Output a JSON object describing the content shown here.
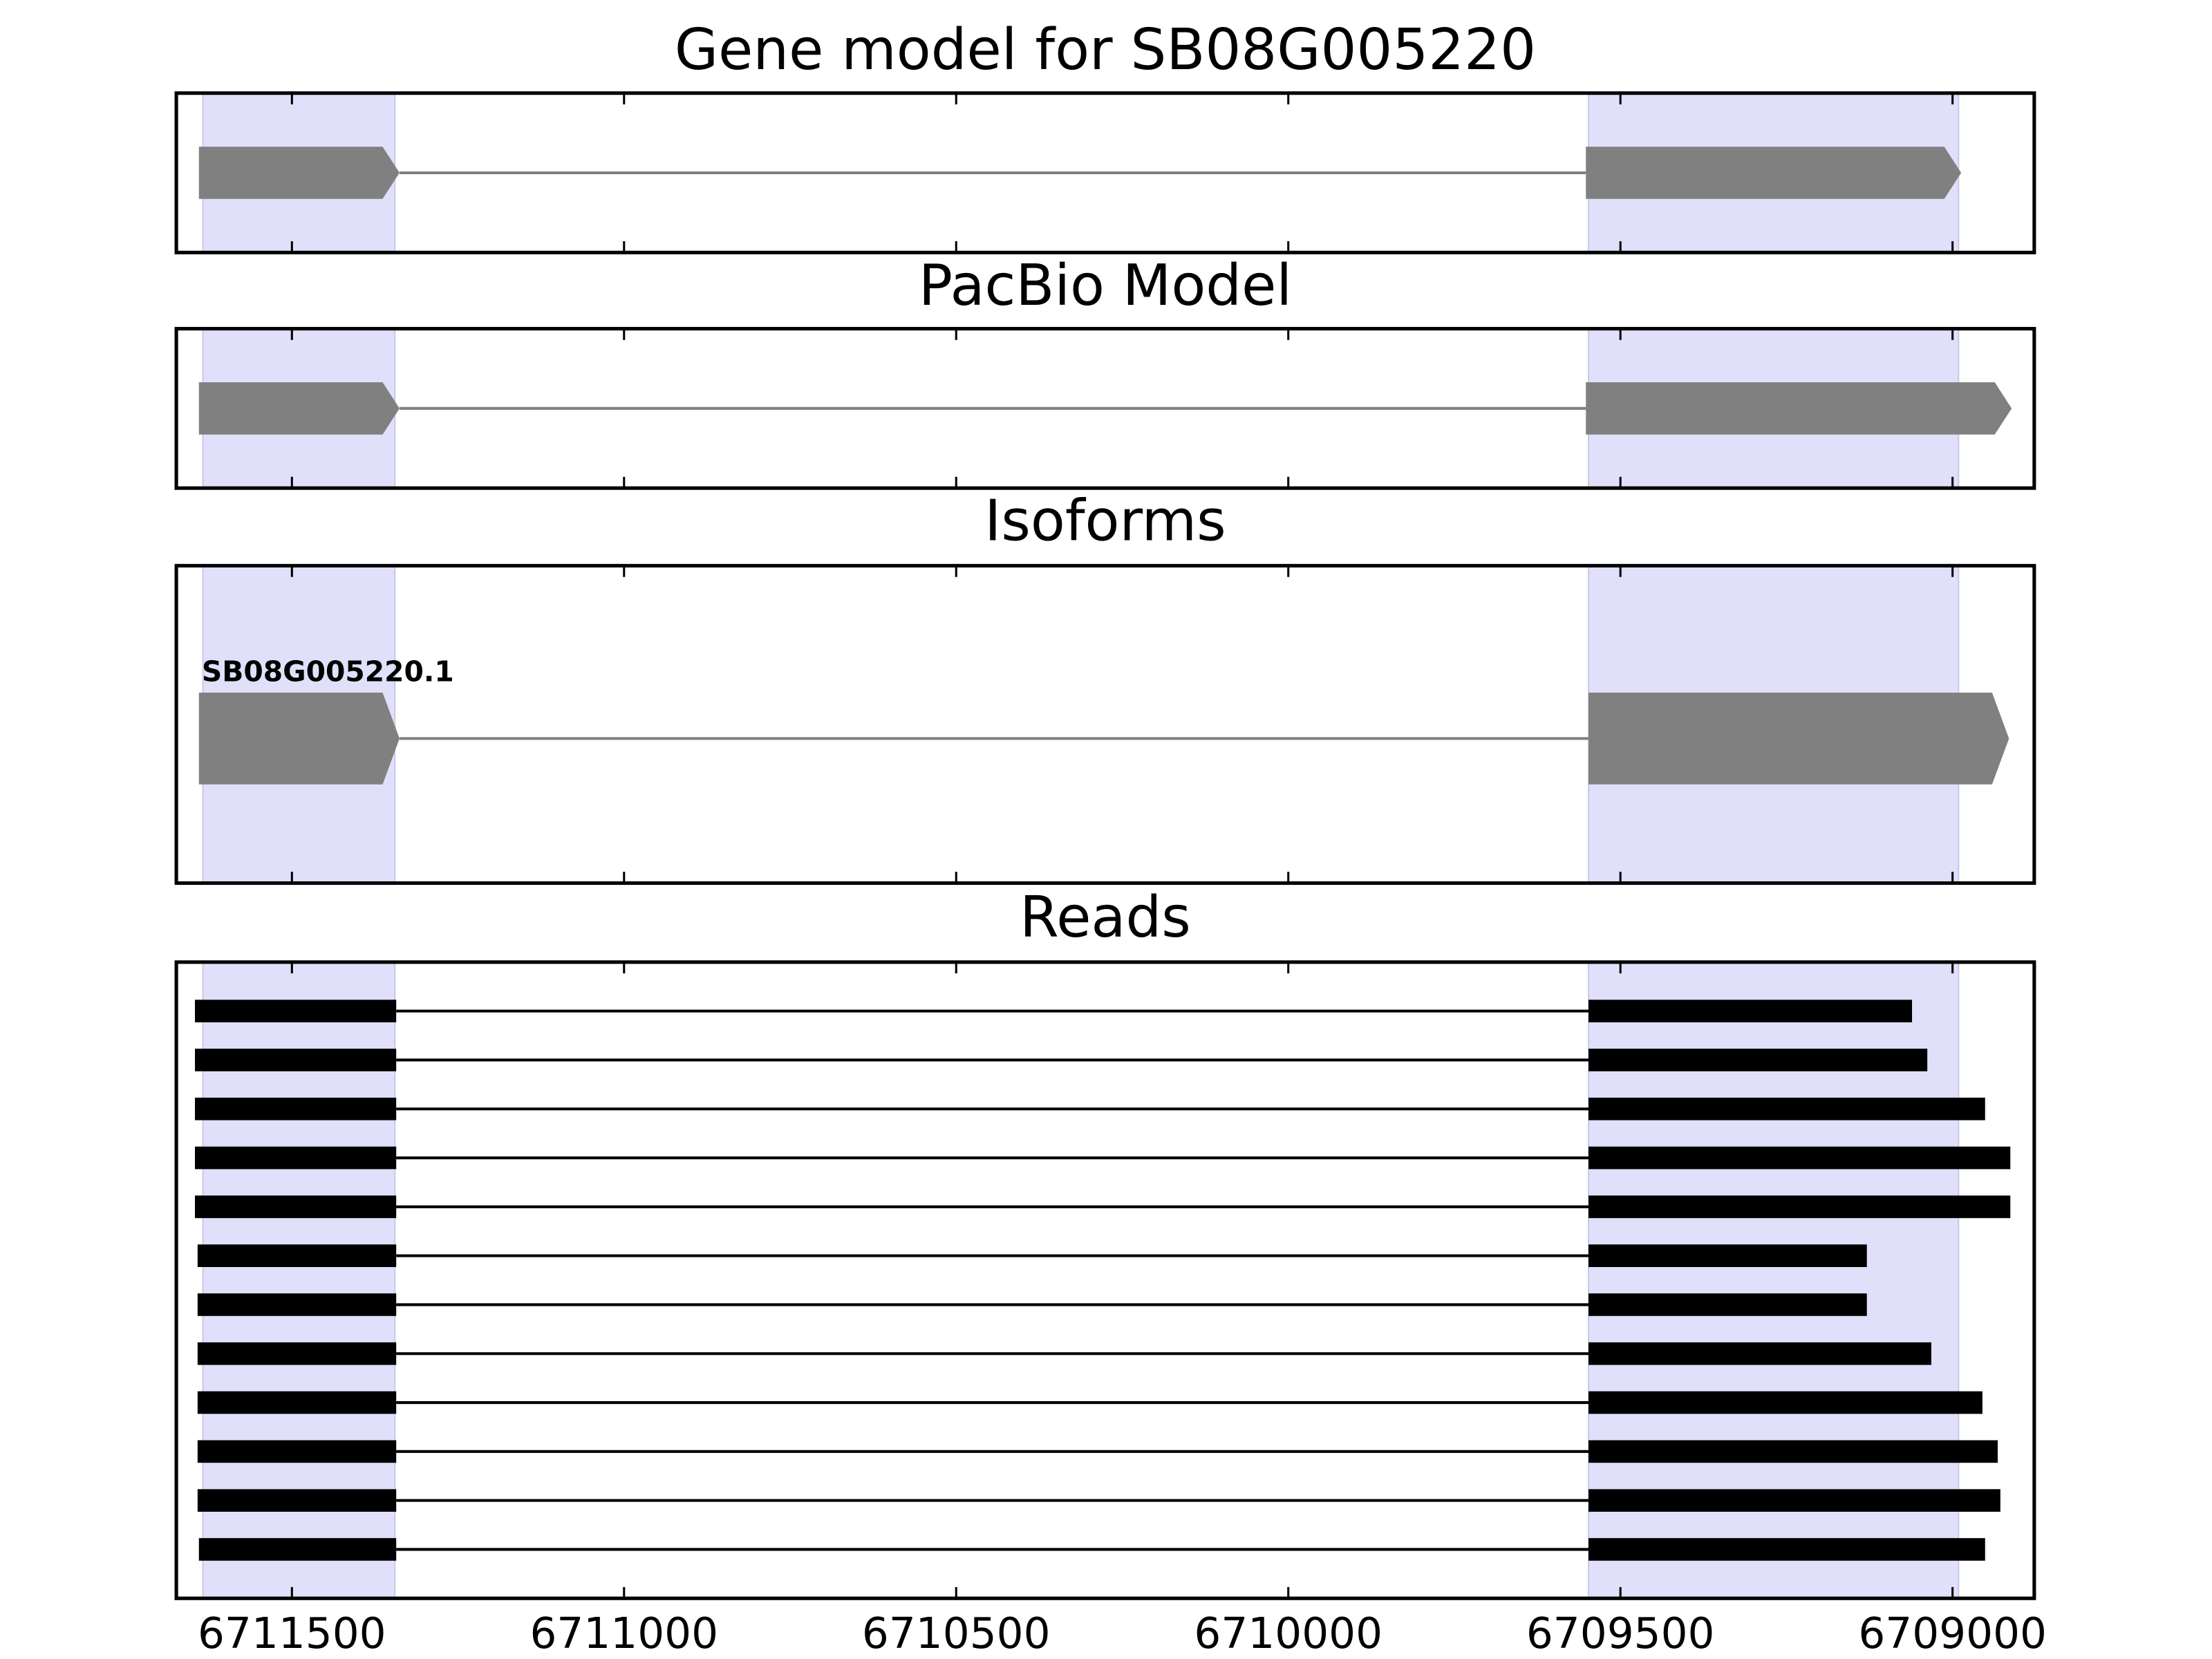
{
  "chart_data": [
    {
      "type": "gene",
      "title": "Gene model for SB08G005220",
      "shape": "arrow",
      "color": "#808080",
      "highlight_color": "#e0e0fa",
      "xlim": [
        6711674,
        6708877
      ],
      "xticks": [
        6711500,
        6711000,
        6710500,
        6710000,
        6709500,
        6709000
      ],
      "highlights": [
        [
          6711634,
          6711345
        ],
        [
          6709548,
          6708991
        ]
      ],
      "features": [
        {
          "exons": [
            [
              6711640,
              6711338
            ],
            [
              6709552,
              6708987
            ]
          ]
        }
      ]
    },
    {
      "type": "gene",
      "title": "PacBio Model",
      "shape": "arrow",
      "color": "#808080",
      "highlight_color": "#e0e0fa",
      "xlim": [
        6711674,
        6708877
      ],
      "xticks": [
        6711500,
        6711000,
        6710500,
        6710000,
        6709500,
        6709000
      ],
      "highlights": [
        [
          6711634,
          6711345
        ],
        [
          6709548,
          6708991
        ]
      ],
      "features": [
        {
          "exons": [
            [
              6711640,
              6711338
            ],
            [
              6709552,
              6708911
            ]
          ]
        }
      ]
    },
    {
      "type": "gene",
      "title": "Isoforms",
      "shape": "arrow",
      "color": "#808080",
      "highlight_color": "#e0e0fa",
      "xlim": [
        6711674,
        6708877
      ],
      "xticks": [
        6711500,
        6711000,
        6710500,
        6710000,
        6709500,
        6709000
      ],
      "highlights": [
        [
          6711634,
          6711345
        ],
        [
          6709548,
          6708991
        ]
      ],
      "features": [
        {
          "name": "SB08G005220.1",
          "exons": [
            [
              6711640,
              6711338
            ],
            [
              6709548,
              6708915
            ]
          ]
        }
      ]
    },
    {
      "type": "gene",
      "title": "Reads",
      "shape": "bar",
      "color": "#000000",
      "highlight_color": "#e0e0fa",
      "show_tick_labels": true,
      "xlim": [
        6711674,
        6708877
      ],
      "xticks": [
        6711500,
        6711000,
        6710500,
        6710000,
        6709500,
        6709000
      ],
      "highlights": [
        [
          6711634,
          6711345
        ],
        [
          6709548,
          6708991
        ]
      ],
      "features": [
        {
          "exons": [
            [
              6711646,
              6711343
            ],
            [
              6709548,
              6709061
            ]
          ]
        },
        {
          "exons": [
            [
              6711646,
              6711343
            ],
            [
              6709548,
              6709038
            ]
          ]
        },
        {
          "exons": [
            [
              6711646,
              6711343
            ],
            [
              6709548,
              6708951
            ]
          ]
        },
        {
          "exons": [
            [
              6711646,
              6711343
            ],
            [
              6709548,
              6708913
            ]
          ]
        },
        {
          "exons": [
            [
              6711646,
              6711343
            ],
            [
              6709548,
              6708913
            ]
          ]
        },
        {
          "exons": [
            [
              6711642,
              6711343
            ],
            [
              6709548,
              6709129
            ]
          ]
        },
        {
          "exons": [
            [
              6711642,
              6711343
            ],
            [
              6709548,
              6709129
            ]
          ]
        },
        {
          "exons": [
            [
              6711642,
              6711343
            ],
            [
              6709548,
              6709032
            ]
          ]
        },
        {
          "exons": [
            [
              6711642,
              6711343
            ],
            [
              6709548,
              6708955
            ]
          ]
        },
        {
          "exons": [
            [
              6711642,
              6711343
            ],
            [
              6709548,
              6708932
            ]
          ]
        },
        {
          "exons": [
            [
              6711642,
              6711343
            ],
            [
              6709548,
              6708928
            ]
          ]
        },
        {
          "exons": [
            [
              6711640,
              6711343
            ],
            [
              6709548,
              6708951
            ]
          ]
        }
      ]
    }
  ]
}
